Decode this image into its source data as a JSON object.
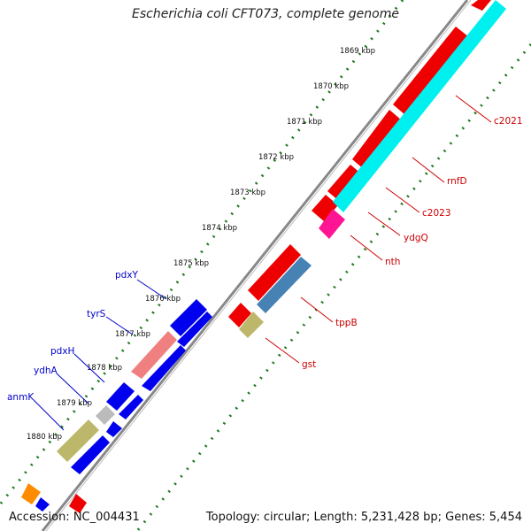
{
  "title": "Escherichia coli CFT073, complete genome",
  "footer": {
    "accession": "Accession: NC_004431",
    "topology": "Topology: circular; Length: 5,231,428 bp; Genes: 5,454"
  },
  "colors": {
    "backbone": "#888888",
    "dots": "#1e7a1e",
    "blue_label": "#0000cc",
    "red_label": "#cc0000"
  },
  "kbp_labels": [
    "1869 kbp",
    "1870 kbp",
    "1871 kbp",
    "1872 kbp",
    "1873 kbp",
    "1874 kbp",
    "1875 kbp",
    "1876 kbp",
    "1877 kbp",
    "1878 kbp",
    "1879 kbp",
    "1880 kbp"
  ],
  "left_labels": [
    "pdxY",
    "tyrS",
    "pdxH",
    "ydhA",
    "anmK"
  ],
  "right_labels": [
    "c2021",
    "rnfD",
    "c2023",
    "ydgQ",
    "nth",
    "tppB",
    "gst"
  ]
}
